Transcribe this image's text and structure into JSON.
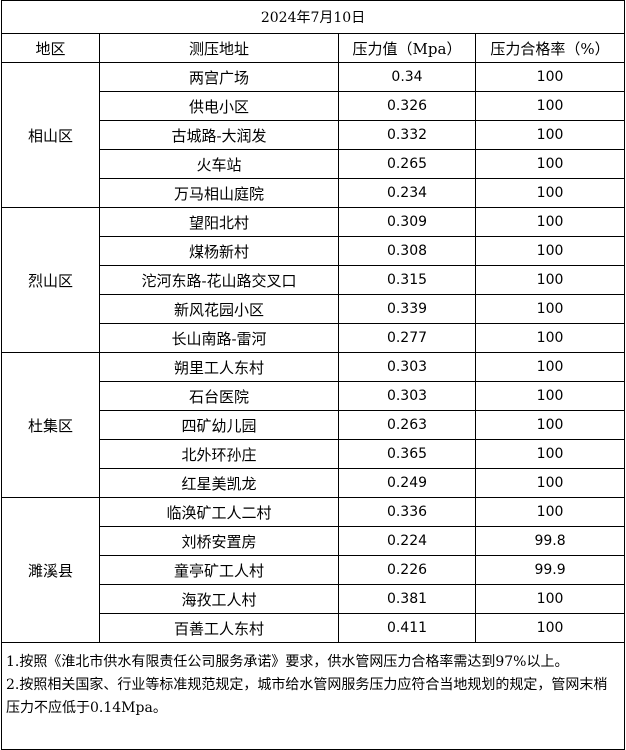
{
  "table": {
    "title": "2024年7月10日",
    "headers": [
      "地区",
      "测压地址",
      "压力值（Mpa）",
      "压力合格率（%）"
    ],
    "groups": [
      {
        "district": "相山区",
        "rows": [
          [
            "两宫广场",
            "0.34",
            "100"
          ],
          [
            "供电小区",
            "0.326",
            "100"
          ],
          [
            "古城路-大润发",
            "0.332",
            "100"
          ],
          [
            "火车站",
            "0.265",
            "100"
          ],
          [
            "万马相山庭院",
            "0.234",
            "100"
          ]
        ]
      },
      {
        "district": "烈山区",
        "rows": [
          [
            "望阳北村",
            "0.309",
            "100"
          ],
          [
            "煤杨新村",
            "0.308",
            "100"
          ],
          [
            "沱河东路-花山路交叉口",
            "0.315",
            "100"
          ],
          [
            "新风花园小区",
            "0.339",
            "100"
          ],
          [
            "长山南路-雷河",
            "0.277",
            "100"
          ]
        ]
      },
      {
        "district": "杜集区",
        "rows": [
          [
            "朔里工人东村",
            "0.303",
            "100"
          ],
          [
            "石台医院",
            "0.303",
            "100"
          ],
          [
            "四矿幼儿园",
            "0.263",
            "100"
          ],
          [
            "北外环孙庄",
            "0.365",
            "100"
          ],
          [
            "红星美凯龙",
            "0.249",
            "100"
          ]
        ]
      },
      {
        "district": "濉溪县",
        "rows": [
          [
            "临涣矿工人二村",
            "0.336",
            "100"
          ],
          [
            "刘桥安置房",
            "0.224",
            "99.8"
          ],
          [
            "童亭矿工人村",
            "0.226",
            "99.9"
          ],
          [
            "海孜工人村",
            "0.381",
            "100"
          ],
          [
            "百善工人东村",
            "0.411",
            "100"
          ]
        ]
      }
    ],
    "notes": [
      "1.按照《淮北市供水有限责任公司服务承诺》要求，供水管网压力合格率需达到97%以上。",
      "2.按照相关国家、行业等标准规范规定，城市给水管网服务压力应符合当地规划的规定，管网末梢压力不应低于0.14Mpa。"
    ]
  }
}
